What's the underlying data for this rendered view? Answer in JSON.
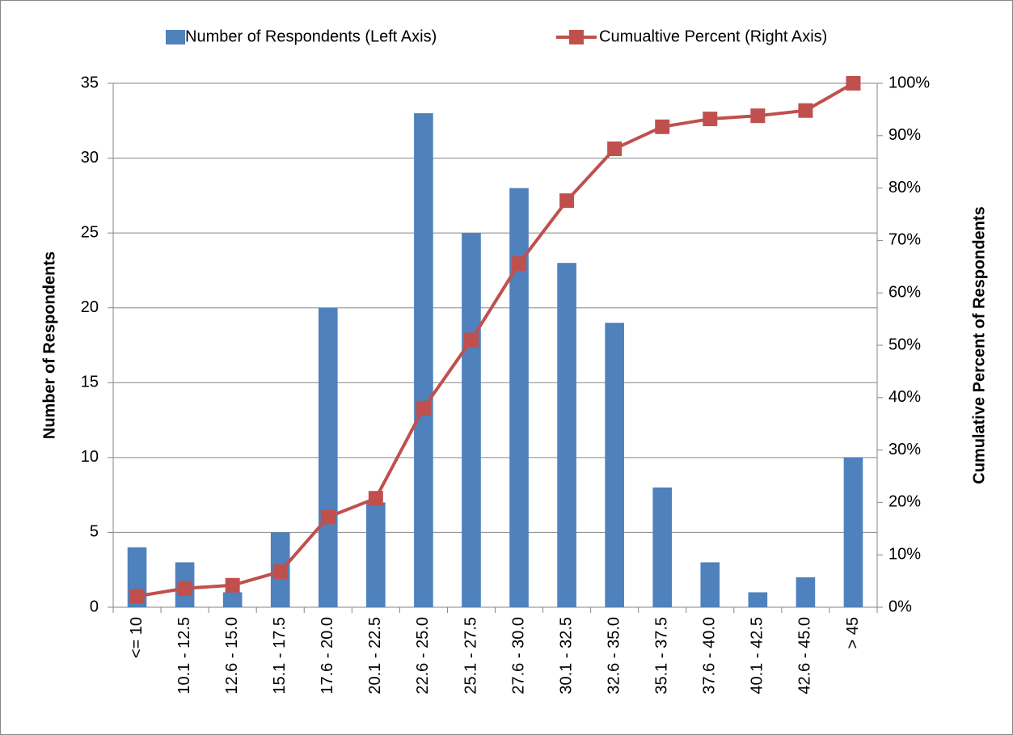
{
  "chart_data": {
    "type": "bar",
    "categories": [
      "<= 10",
      "10.1 - 12.5",
      "12.6 - 15.0",
      "15.1 - 17.5",
      "17.6 - 20.0",
      "20.1 - 22.5",
      "22.6 - 25.0",
      "25.1 - 27.5",
      "27.6 - 30.0",
      "30.1 - 32.5",
      "32.6 - 35.0",
      "35.1 - 37.5",
      "37.6 - 40.0",
      "40.1 - 42.5",
      "42.6 - 45.0",
      "> 45"
    ],
    "series": [
      {
        "name": "Number of Respondents (Left Axis)",
        "type": "bar",
        "color": "#4f81bd",
        "values": [
          4,
          3,
          1,
          5,
          20,
          7,
          33,
          25,
          28,
          23,
          19,
          8,
          3,
          1,
          2,
          10
        ]
      },
      {
        "name": "Cumualtive Percent (Right Axis)",
        "type": "line",
        "axis": "y2",
        "color": "#c0504d",
        "values": [
          2.1,
          3.6,
          4.2,
          6.8,
          17.2,
          20.8,
          38.0,
          51.0,
          65.6,
          77.6,
          87.5,
          91.7,
          93.2,
          93.8,
          94.8,
          100
        ]
      }
    ],
    "ylabel": "Number of Respondents",
    "y2label": "Cumulative Percent of Respondents",
    "ylim": [
      0,
      35
    ],
    "yticks": [
      0,
      5,
      10,
      15,
      20,
      25,
      30,
      35
    ],
    "y2lim": [
      0,
      100
    ],
    "y2ticks": [
      {
        "value": 0,
        "label": "0%"
      },
      {
        "value": 10,
        "label": "10%"
      },
      {
        "value": 20,
        "label": "20%"
      },
      {
        "value": 30,
        "label": "30%"
      },
      {
        "value": 40,
        "label": "40%"
      },
      {
        "value": 50,
        "label": "50%"
      },
      {
        "value": 60,
        "label": "60%"
      },
      {
        "value": 70,
        "label": "70%"
      },
      {
        "value": 80,
        "label": "80%"
      },
      {
        "value": 90,
        "label": "90%"
      },
      {
        "value": 100,
        "label": "100%"
      }
    ],
    "grid": true,
    "legend": "top"
  }
}
